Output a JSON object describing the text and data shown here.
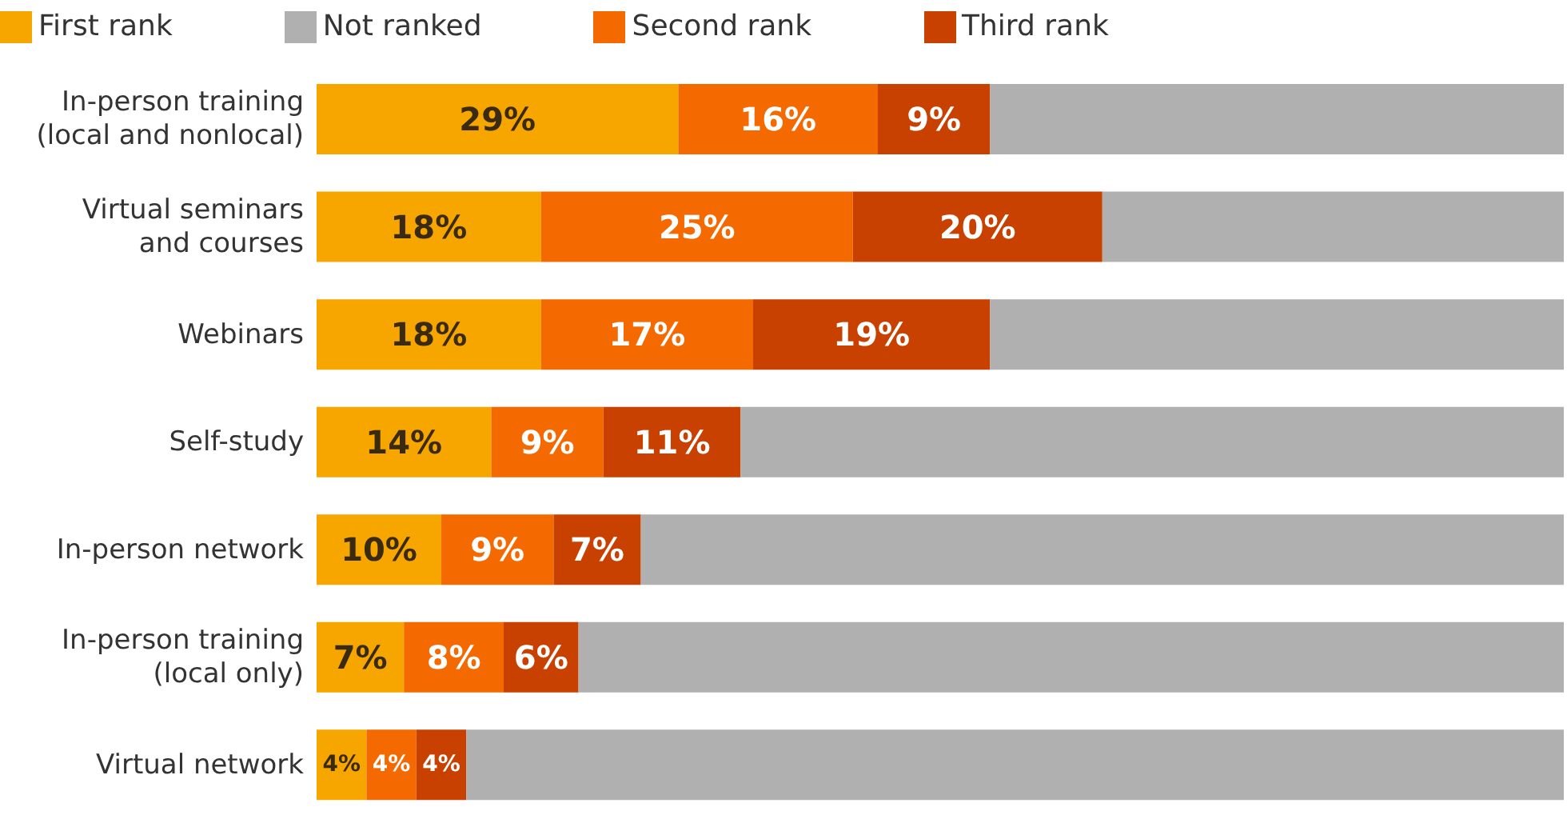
{
  "chart_data": {
    "type": "bar",
    "orientation": "horizontal",
    "stacked": true,
    "legend": "top left",
    "tick_labels": "y",
    "xlim": [
      0,
      100
    ],
    "categories": [
      "In-person training\n(local and nonlocal)",
      "Virtual seminars\nand courses",
      "Webinars",
      "Self-study",
      "In-person network",
      "In-person training\n(local only)",
      "Virtual network"
    ],
    "series": [
      {
        "name": "First rank",
        "color": "#f7a600",
        "values": [
          29,
          18,
          18,
          14,
          10,
          7,
          4
        ],
        "value_labels": [
          "29%",
          "18%",
          "18%",
          "14%",
          "10%",
          "7%",
          "4%"
        ]
      },
      {
        "name": "Second rank",
        "color": "#f56a00",
        "values": [
          16,
          25,
          17,
          9,
          9,
          8,
          4
        ],
        "value_labels": [
          "16%",
          "25%",
          "17%",
          "9%",
          "9%",
          "8%",
          "4%"
        ]
      },
      {
        "name": "Third rank",
        "color": "#c94100",
        "values": [
          9,
          20,
          19,
          11,
          7,
          6,
          4
        ],
        "value_labels": [
          "9%",
          "20%",
          "19%",
          "11%",
          "7%",
          "6%",
          "4%"
        ]
      },
      {
        "name": "Not ranked",
        "color": "#b0b0b0",
        "values": [
          46,
          37,
          46,
          66,
          74,
          79,
          88
        ],
        "value_labels": [
          null,
          null,
          null,
          null,
          null,
          null,
          null
        ]
      }
    ]
  }
}
